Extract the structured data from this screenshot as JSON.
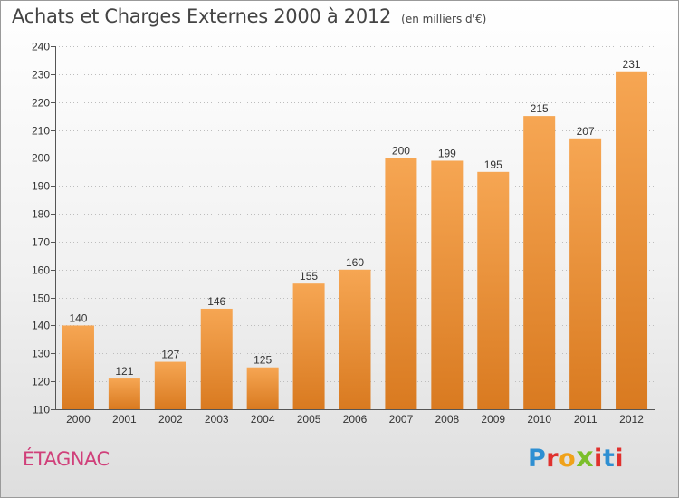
{
  "header": {
    "title": "Achats et Charges Externes 2000 à 2012",
    "unit": "(en milliers d'€)"
  },
  "footer": {
    "commune": "ÉTAGNAC",
    "logo_text": "Proxiti"
  },
  "colors": {
    "bar_top": "#f6a653",
    "bar_bottom": "#d97a20",
    "commune_text": "#d0407a",
    "logo_letters": [
      "#2e8fd2",
      "#e0312e",
      "#f0a21a",
      "#7bbf2b",
      "#e0312e",
      "#2e8fd2",
      "#e0312e"
    ]
  },
  "chart_data": {
    "type": "bar",
    "title": "Achats et Charges Externes 2000 à 2012",
    "subtitle": "(en milliers d'€)",
    "categories": [
      "2000",
      "2001",
      "2002",
      "2003",
      "2004",
      "2005",
      "2006",
      "2007",
      "2008",
      "2009",
      "2010",
      "2011",
      "2012"
    ],
    "values": [
      140,
      121,
      127,
      146,
      125,
      155,
      160,
      200,
      199,
      195,
      215,
      207,
      231
    ],
    "ylim": [
      110,
      240
    ],
    "yticks": [
      110,
      120,
      130,
      140,
      150,
      160,
      170,
      180,
      190,
      200,
      210,
      220,
      230,
      240
    ],
    "grid": true,
    "data_labels": true
  }
}
